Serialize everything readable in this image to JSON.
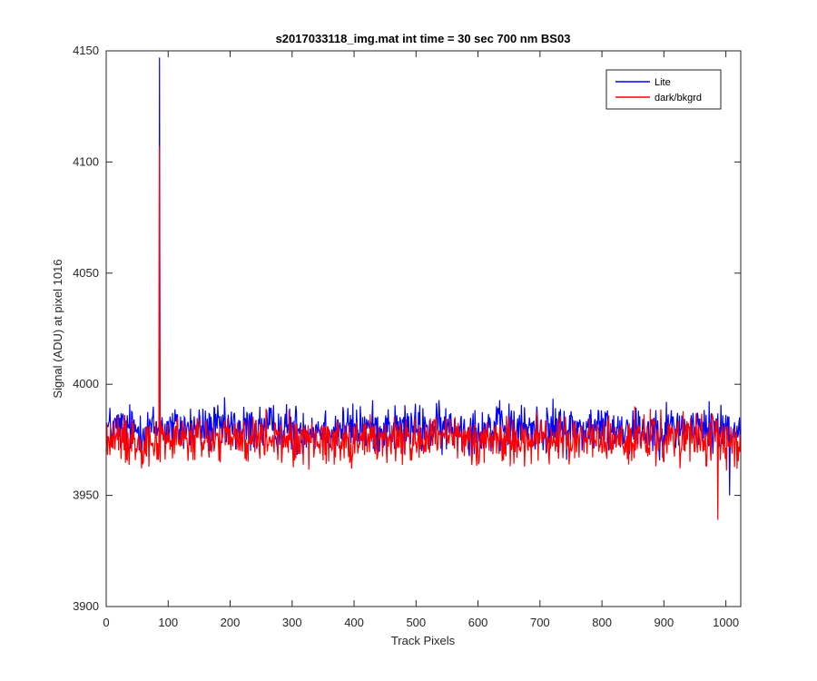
{
  "chart_data": {
    "type": "line",
    "title": "s2017033118_img.mat int time = 30 sec  700 nm BS03",
    "xlabel": "Track Pixels",
    "ylabel": "Signal (ADU) at pixel 1016",
    "xlim": [
      0,
      1024
    ],
    "ylim": [
      3900,
      4150
    ],
    "xticks": [
      0,
      100,
      200,
      300,
      400,
      500,
      600,
      700,
      800,
      900,
      1000
    ],
    "yticks": [
      3900,
      3950,
      4000,
      4050,
      4100,
      4150
    ],
    "grid": false,
    "legend_position": "top-right",
    "series": [
      {
        "name": "Lite",
        "color": "#0000ff",
        "summary": {
          "baseline": 3980,
          "noise_range": [
            3952,
            4010
          ],
          "spike": {
            "x": 86,
            "y": 4147
          },
          "min": {
            "x": 1006,
            "y": 3950
          }
        }
      },
      {
        "name": "dark/bkgrd",
        "color": "#ff0000",
        "summary": {
          "baseline": 3975,
          "noise_range": [
            3946,
            4006
          ],
          "spike": {
            "x": 86,
            "y": 4107
          },
          "min": {
            "x": 987,
            "y": 3939
          }
        }
      }
    ]
  }
}
